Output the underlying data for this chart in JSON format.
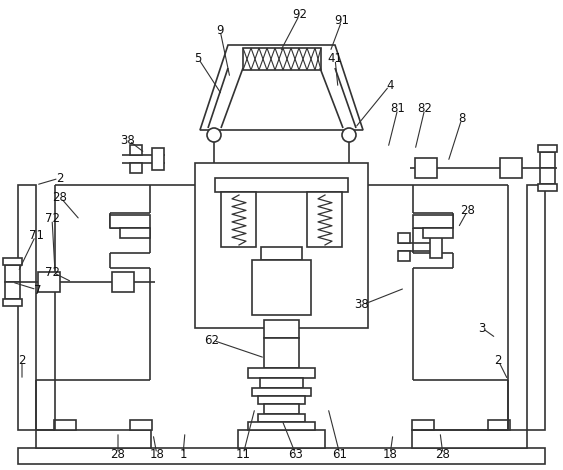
{
  "bg": "#ffffff",
  "lc": "#333333",
  "lw": 1.2,
  "fig_w": 5.63,
  "fig_h": 4.7,
  "dpi": 100
}
